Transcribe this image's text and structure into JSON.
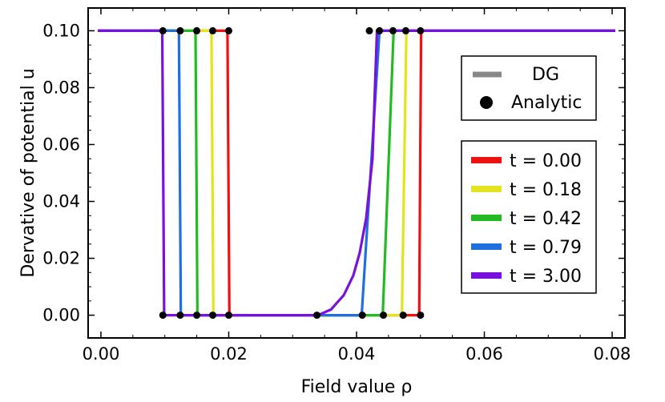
{
  "chart_data": {
    "type": "line",
    "xlabel": "Field value ρ",
    "ylabel": "Dervative of potential u",
    "xlim": [
      -0.002,
      0.082
    ],
    "ylim": [
      -0.008,
      0.108
    ],
    "xticks": [
      0.0,
      0.02,
      0.04,
      0.06,
      0.08
    ],
    "xtick_labels": [
      "0.00",
      "0.02",
      "0.04",
      "0.06",
      "0.08"
    ],
    "yticks": [
      0.0,
      0.02,
      0.04,
      0.06,
      0.08,
      0.1
    ],
    "ytick_labels": [
      "0.00",
      "0.02",
      "0.04",
      "0.06",
      "0.08",
      "0.10"
    ],
    "grid": false,
    "legend_style": {
      "position": "upper-right",
      "entries": [
        {
          "label": "DG",
          "marker": "line",
          "color": "#888888"
        },
        {
          "label": "Analytic",
          "marker": "dot",
          "color": "#000000"
        }
      ]
    },
    "legend_time": {
      "position": "right",
      "entries": [
        "t = 0.00",
        "t = 0.18",
        "t = 0.42",
        "t = 0.79",
        "t = 3.00"
      ]
    },
    "series": [
      {
        "name": "t = 0.00",
        "color": "#ee1111",
        "x": [
          -0.0005,
          0.0198,
          0.0201,
          0.0498,
          0.0501,
          0.0805
        ],
        "y": [
          0.1,
          0.1,
          0.0,
          0.0,
          0.1,
          0.1
        ],
        "analytic_points": [
          [
            0.02,
            0.1
          ],
          [
            0.02,
            0.0
          ],
          [
            0.05,
            0.0
          ],
          [
            0.05,
            0.1
          ]
        ]
      },
      {
        "name": "t = 0.18",
        "color": "#e3e320",
        "x": [
          -0.0005,
          0.0173,
          0.0176,
          0.0471,
          0.0478,
          0.0805
        ],
        "y": [
          0.1,
          0.1,
          0.0,
          0.0,
          0.1,
          0.1
        ],
        "analytic_points": [
          [
            0.0175,
            0.1
          ],
          [
            0.0175,
            0.0
          ],
          [
            0.0473,
            0.0
          ],
          [
            0.0477,
            0.1
          ]
        ]
      },
      {
        "name": "t = 0.42",
        "color": "#22bb22",
        "x": [
          -0.0005,
          0.0148,
          0.0151,
          0.0441,
          0.0458,
          0.0805
        ],
        "y": [
          0.1,
          0.1,
          0.0,
          0.0,
          0.1,
          0.1
        ],
        "analytic_points": [
          [
            0.015,
            0.1
          ],
          [
            0.015,
            0.0
          ],
          [
            0.0442,
            0.0
          ],
          [
            0.0457,
            0.1
          ]
        ]
      },
      {
        "name": "t = 0.79",
        "color": "#1f6fe0",
        "x": [
          -0.0005,
          0.0122,
          0.0125,
          0.0408,
          0.0436,
          0.0805
        ],
        "y": [
          0.1,
          0.1,
          0.0,
          0.0,
          0.1,
          0.1
        ],
        "analytic_points": [
          [
            0.0124,
            0.1
          ],
          [
            0.0124,
            0.0
          ],
          [
            0.0409,
            0.0
          ],
          [
            0.0436,
            0.1
          ]
        ]
      },
      {
        "name": "t = 3.00",
        "color": "#7a10dd",
        "x": [
          -0.0005,
          0.0096,
          0.0099,
          0.034,
          0.036,
          0.038,
          0.0395,
          0.0405,
          0.0415,
          0.0425,
          0.0432,
          0.0805
        ],
        "y": [
          0.1,
          0.1,
          0.0,
          0.0,
          0.002,
          0.007,
          0.014,
          0.022,
          0.034,
          0.055,
          0.1,
          0.1
        ],
        "analytic_points": [
          [
            0.0097,
            0.1
          ],
          [
            0.0097,
            0.0
          ],
          [
            0.0338,
            0.0
          ],
          [
            0.042,
            0.1
          ]
        ]
      }
    ]
  }
}
